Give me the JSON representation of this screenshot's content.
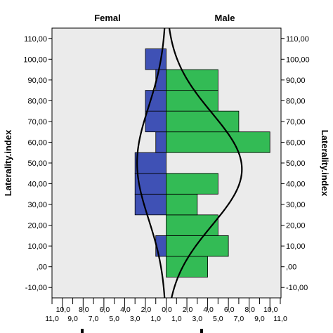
{
  "chart_data": {
    "type": "bar",
    "orientation": "horizontal",
    "panels": [
      {
        "title": "Femal",
        "color": "#3f51b5"
      },
      {
        "title": "Male",
        "color": "#33bb55"
      }
    ],
    "ylabel": "Laterality.index",
    "ylim": [
      -15,
      115
    ],
    "yticks": [
      "-10,00",
      ",00",
      "10,00",
      "20,00",
      "30,00",
      "40,00",
      "50,00",
      "60,00",
      "70,00",
      "80,00",
      "90,00",
      "100,00",
      "110,00"
    ],
    "xlim": [
      0,
      11
    ],
    "xticks_top": [
      "10,0",
      "8,0",
      "6,0",
      "4,0",
      "2,0",
      "0,0",
      "2,0",
      "4,0",
      "6,0",
      "8,0",
      "10,0"
    ],
    "xticks_bottom": [
      "11,0",
      "9,0",
      "7,0",
      "5,0",
      "3,0",
      "1,0",
      "1,0",
      "3,0",
      "5,0",
      "7,0",
      "9,0",
      "11,0"
    ],
    "bin_width": 10,
    "female": [
      {
        "from": 5,
        "to": 15,
        "count": 1
      },
      {
        "from": 15,
        "to": 25,
        "count": 0
      },
      {
        "from": 25,
        "to": 35,
        "count": 3
      },
      {
        "from": 35,
        "to": 45,
        "count": 3
      },
      {
        "from": 45,
        "to": 55,
        "count": 3
      },
      {
        "from": 55,
        "to": 65,
        "count": 1
      },
      {
        "from": 65,
        "to": 75,
        "count": 2
      },
      {
        "from": 75,
        "to": 85,
        "count": 2
      },
      {
        "from": 85,
        "to": 95,
        "count": 1
      },
      {
        "from": 95,
        "to": 105,
        "count": 2
      }
    ],
    "male": [
      {
        "from": -5,
        "to": 5,
        "count": 4
      },
      {
        "from": 5,
        "to": 15,
        "count": 6
      },
      {
        "from": 15,
        "to": 25,
        "count": 5
      },
      {
        "from": 25,
        "to": 35,
        "count": 3
      },
      {
        "from": 35,
        "to": 45,
        "count": 5
      },
      {
        "from": 45,
        "to": 55,
        "count": 0
      },
      {
        "from": 55,
        "to": 65,
        "count": 10
      },
      {
        "from": 65,
        "to": 75,
        "count": 7
      },
      {
        "from": 75,
        "to": 85,
        "count": 5
      },
      {
        "from": 85,
        "to": 95,
        "count": 5
      }
    ],
    "normal_curves": [
      {
        "panel": "Femal",
        "mean": 50,
        "sd": 27,
        "peak": 2.8
      },
      {
        "panel": "Male",
        "mean": 47,
        "sd": 27,
        "peak": 7.3
      }
    ],
    "grid": false,
    "legend": "none"
  }
}
